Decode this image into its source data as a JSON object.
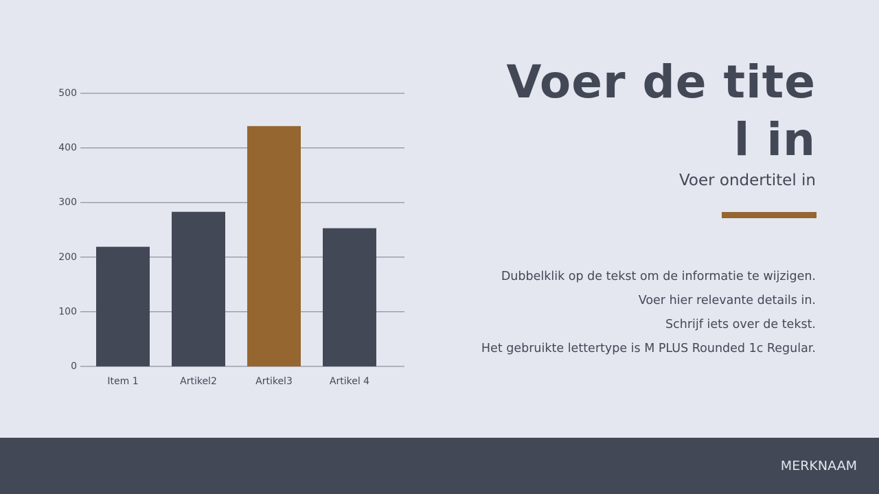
{
  "slide": {
    "title_lines": [
      "Voer de tite",
      "l in"
    ],
    "subtitle": "Voer ondertitel in",
    "body": [
      "Dubbelklik op de tekst om de informatie te wijzigen.",
      "Voer hier relevante details in.",
      "Schrijf iets over de tekst.",
      "Het gebruikte lettertype is M PLUS Rounded 1c Regular."
    ],
    "brand": "MERKNAAM"
  },
  "chart_data": {
    "type": "bar",
    "categories": [
      "Item 1",
      "Artikel2",
      "Artikel3",
      "Artikel 4"
    ],
    "values": [
      219,
      283,
      440,
      253
    ],
    "colors": [
      "#434856",
      "#434856",
      "#956630",
      "#434856"
    ],
    "ylim": [
      0,
      500
    ],
    "yticks": [
      0,
      100,
      200,
      300,
      400,
      500
    ],
    "grid": true
  }
}
